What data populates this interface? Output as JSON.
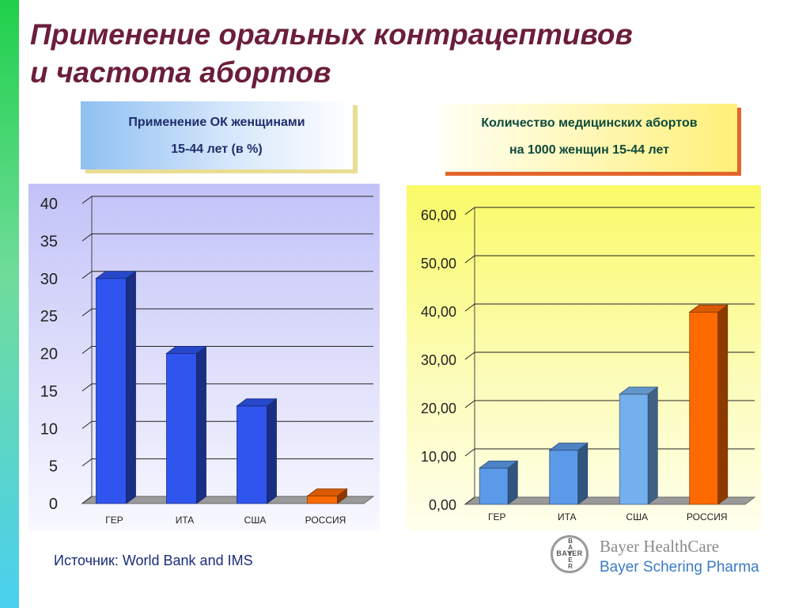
{
  "slide": {
    "title_line1": "Применение оральных контрацептивов",
    "title_line2": "и частота абортов",
    "source": "Источник: World Bank and IMS"
  },
  "captions": {
    "left_line1": "Применение ОК женщинами",
    "left_line2": "15-44  лет (в %)",
    "right_line1": "Количество медицинских абортов",
    "right_line2": "на 1000 женщин 15-44 лет"
  },
  "logo": {
    "circle_text": "BAYER",
    "line1": "Bayer HealthCare",
    "line2": "Bayer Schering Pharma"
  },
  "chart_data": [
    {
      "type": "bar",
      "categories": [
        "ГЕР",
        "ИТА",
        "США",
        "РОССИЯ"
      ],
      "values": [
        30,
        20,
        13,
        1
      ],
      "ylim": [
        0,
        40
      ],
      "yticks": [
        "0",
        "5",
        "10",
        "15",
        "20",
        "25",
        "30",
        "35",
        "40"
      ],
      "bar_colors": [
        "#2f55ee",
        "#2f55ee",
        "#2f55ee",
        "#ff6a00"
      ],
      "grid": true,
      "style": "3d"
    },
    {
      "type": "bar",
      "categories": [
        "ГЕР",
        "ИТА",
        "США",
        "РОССИЯ"
      ],
      "values": [
        7.5,
        11.2,
        22.8,
        39.8
      ],
      "ylim": [
        0,
        60
      ],
      "yticks": [
        "0,00",
        "10,00",
        "20,00",
        "30,00",
        "40,00",
        "50,00",
        "60,00"
      ],
      "bar_colors": [
        "#5b9ae8",
        "#5b9ae8",
        "#74b0ee",
        "#ff6a00"
      ],
      "grid": true,
      "style": "3d"
    }
  ]
}
